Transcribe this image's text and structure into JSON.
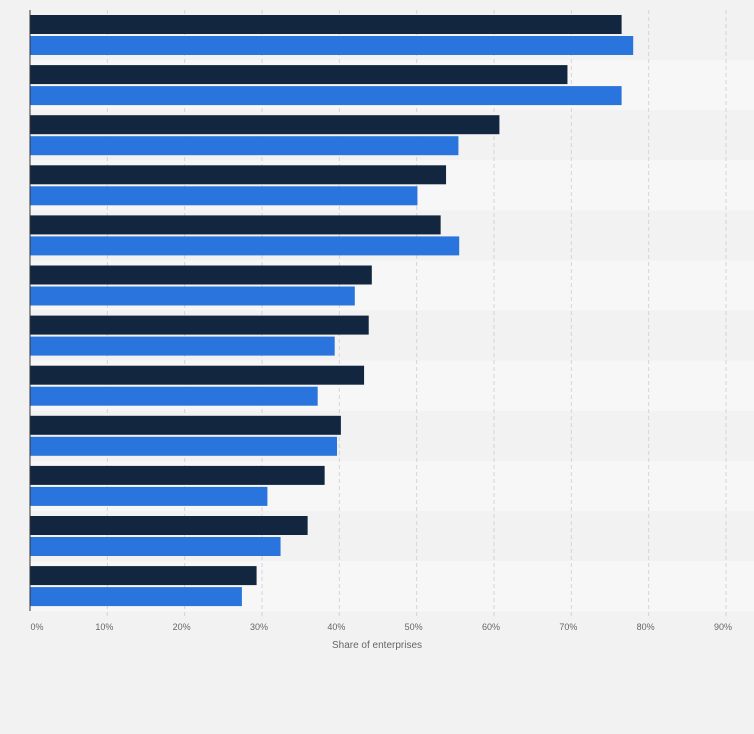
{
  "chart_data": {
    "type": "bar",
    "orientation": "horizontal",
    "title": "",
    "xlabel": "Share of enterprises",
    "ylabel": "",
    "xlim": [
      0,
      90
    ],
    "x_tick_labels": [
      "0%",
      "10%",
      "20%",
      "30%",
      "40%",
      "50%",
      "60%",
      "70%",
      "80%",
      "90%"
    ],
    "categories": [
      "",
      "",
      "",
      "",
      "",
      "",
      "",
      "",
      "",
      "",
      "",
      ""
    ],
    "series": [
      {
        "color": "#12263f",
        "values": [
          76.5,
          69.5,
          60.7,
          53.8,
          53.1,
          44.2,
          43.8,
          43.2,
          40.2,
          38.1,
          35.9,
          29.3
        ]
      },
      {
        "color": "#2a74de",
        "values": [
          78.0,
          76.5,
          55.4,
          50.1,
          55.5,
          42.0,
          39.4,
          37.2,
          39.7,
          30.7,
          32.4,
          27.4
        ]
      }
    ],
    "grid": true,
    "legend": "none"
  }
}
